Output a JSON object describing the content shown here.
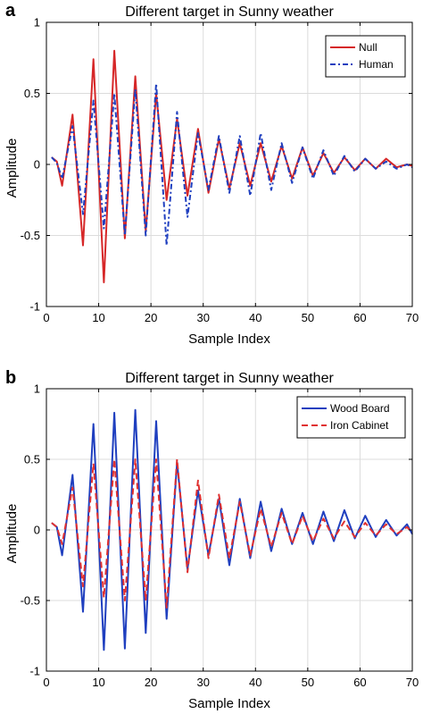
{
  "chart_data": [
    {
      "panel": "a",
      "type": "line",
      "title": "Different target in Sunny weather",
      "xlabel": "Sample Index",
      "ylabel": "Amplitude",
      "xlim": [
        0,
        70
      ],
      "ylim": [
        -1,
        1
      ],
      "xticks": [
        0,
        10,
        20,
        30,
        40,
        50,
        60,
        70
      ],
      "yticks": [
        -1,
        -0.5,
        0,
        0.5,
        1
      ],
      "grid": true,
      "legend_position": "top-right",
      "series": [
        {
          "name": "Null",
          "color": "#d62728",
          "dash": "solid",
          "x": [
            1,
            2,
            3,
            5,
            7,
            9,
            11,
            13,
            15,
            17,
            19,
            21,
            23,
            25,
            27,
            29,
            31,
            33,
            35,
            37,
            39,
            41,
            43,
            45,
            47,
            49,
            51,
            53,
            55,
            57,
            59,
            61,
            63,
            65,
            67,
            69,
            70
          ],
          "y": [
            0.05,
            0.02,
            -0.15,
            0.35,
            -0.57,
            0.74,
            -0.83,
            0.8,
            -0.52,
            0.62,
            -0.47,
            0.5,
            -0.25,
            0.32,
            -0.22,
            0.25,
            -0.2,
            0.18,
            -0.17,
            0.15,
            -0.15,
            0.15,
            -0.12,
            0.13,
            -0.1,
            0.12,
            -0.08,
            0.08,
            -0.06,
            0.05,
            -0.04,
            0.04,
            -0.03,
            0.04,
            -0.02,
            0.0,
            -0.01
          ]
        },
        {
          "name": "Human",
          "color": "#1f3fbf",
          "dash": "dashdot",
          "x": [
            1,
            2,
            3,
            5,
            7,
            9,
            11,
            13,
            15,
            17,
            19,
            21,
            23,
            25,
            27,
            29,
            31,
            33,
            35,
            37,
            39,
            41,
            43,
            45,
            47,
            49,
            51,
            53,
            55,
            57,
            59,
            61,
            63,
            65,
            67,
            69,
            70
          ],
          "y": [
            0.05,
            0.01,
            -0.1,
            0.27,
            -0.35,
            0.45,
            -0.45,
            0.5,
            -0.5,
            0.53,
            -0.5,
            0.57,
            -0.57,
            0.37,
            -0.37,
            0.22,
            -0.18,
            0.2,
            -0.2,
            0.2,
            -0.22,
            0.22,
            -0.18,
            0.15,
            -0.13,
            0.12,
            -0.1,
            0.1,
            -0.08,
            0.06,
            -0.05,
            0.04,
            -0.03,
            0.02,
            -0.03,
            0.0,
            -0.02
          ]
        }
      ]
    },
    {
      "panel": "b",
      "type": "line",
      "title": "Different target in Sunny weather",
      "xlabel": "Sample Index",
      "ylabel": "Amplitude",
      "xlim": [
        0,
        70
      ],
      "ylim": [
        -1,
        1
      ],
      "xticks": [
        0,
        10,
        20,
        30,
        40,
        50,
        60,
        70
      ],
      "yticks": [
        -1,
        -0.5,
        0,
        0.5,
        1
      ],
      "grid": true,
      "legend_position": "top-right",
      "series": [
        {
          "name": "Wood Board",
          "color": "#1f3fbf",
          "dash": "solid",
          "x": [
            1,
            2,
            3,
            5,
            7,
            9,
            11,
            13,
            15,
            17,
            19,
            21,
            23,
            25,
            27,
            29,
            31,
            33,
            35,
            37,
            39,
            41,
            43,
            45,
            47,
            49,
            51,
            53,
            55,
            57,
            59,
            61,
            63,
            65,
            67,
            69,
            70
          ],
          "y": [
            0.05,
            0.02,
            -0.18,
            0.39,
            -0.58,
            0.75,
            -0.85,
            0.83,
            -0.84,
            0.85,
            -0.73,
            0.77,
            -0.63,
            0.48,
            -0.28,
            0.28,
            -0.18,
            0.22,
            -0.25,
            0.22,
            -0.2,
            0.2,
            -0.15,
            0.15,
            -0.1,
            0.12,
            -0.1,
            0.13,
            -0.08,
            0.14,
            -0.06,
            0.1,
            -0.05,
            0.07,
            -0.04,
            0.04,
            -0.03
          ]
        },
        {
          "name": "Iron Cabinet",
          "color": "#e03030",
          "dash": "dashed",
          "x": [
            1,
            2,
            3,
            5,
            7,
            9,
            11,
            13,
            15,
            17,
            19,
            21,
            23,
            25,
            27,
            29,
            31,
            33,
            35,
            37,
            39,
            41,
            43,
            45,
            47,
            49,
            51,
            53,
            55,
            57,
            59,
            61,
            63,
            65,
            67,
            69,
            70
          ],
          "y": [
            0.05,
            0.02,
            -0.1,
            0.3,
            -0.4,
            0.47,
            -0.48,
            0.5,
            -0.5,
            0.5,
            -0.5,
            0.5,
            -0.55,
            0.5,
            -0.3,
            0.35,
            -0.2,
            0.25,
            -0.2,
            0.2,
            -0.18,
            0.15,
            -0.12,
            0.12,
            -0.1,
            0.1,
            -0.08,
            0.08,
            -0.06,
            0.06,
            -0.05,
            0.05,
            -0.04,
            0.04,
            -0.03,
            0.02,
            -0.02
          ]
        }
      ]
    }
  ]
}
